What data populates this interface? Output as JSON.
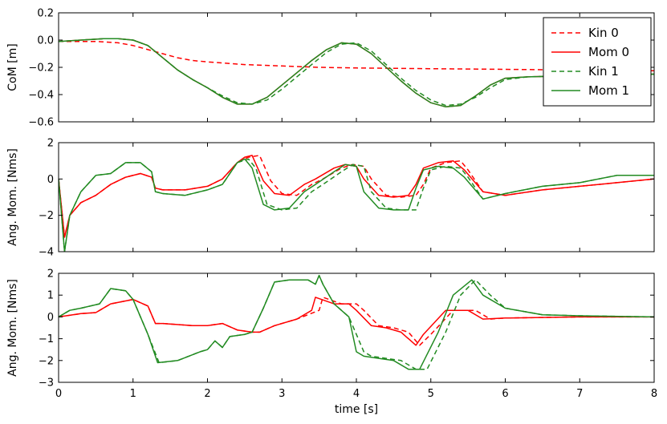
{
  "chart_data": [
    {
      "type": "line",
      "ylabel": "CoM [m]",
      "xlabel": "",
      "xlim": [
        0,
        8
      ],
      "ylim": [
        -0.6,
        0.2
      ],
      "yticks": [
        "−0.6",
        "−0.4",
        "−0.2",
        "0.0",
        "0.2"
      ],
      "ytick_values": [
        -0.6,
        -0.4,
        -0.2,
        0.0,
        0.2
      ],
      "legend": {
        "placement": "top-right"
      },
      "series": [
        {
          "name": "Kin 0",
          "color": "#ff0000",
          "style": "dashed",
          "x": [
            0,
            0.5,
            0.8,
            1.0,
            1.2,
            1.4,
            1.6,
            1.8,
            2.0,
            2.5,
            3.0,
            3.5,
            4.0,
            5.0,
            6.0,
            7.0,
            8.0
          ],
          "y": [
            -0.01,
            -0.01,
            -0.02,
            -0.04,
            -0.07,
            -0.1,
            -0.13,
            -0.15,
            -0.16,
            -0.18,
            -0.19,
            -0.2,
            -0.205,
            -0.21,
            -0.215,
            -0.22,
            -0.225
          ]
        },
        {
          "name": "Mom 0",
          "color": "#ff0000",
          "style": "solid",
          "x": [
            0,
            0.3,
            0.6,
            0.8,
            1.0,
            1.2,
            1.4,
            1.6,
            1.8,
            2.0,
            2.2,
            2.4,
            2.6,
            2.8,
            3.0,
            3.2,
            3.4,
            3.6,
            3.8,
            4.0,
            4.2,
            4.4,
            4.6,
            4.8,
            5.0,
            5.2,
            5.4,
            5.6,
            5.8,
            6.0,
            6.3,
            7.0,
            7.5,
            8.0
          ],
          "y": [
            -0.01,
            0.0,
            0.01,
            0.01,
            0.0,
            -0.04,
            -0.13,
            -0.22,
            -0.29,
            -0.35,
            -0.42,
            -0.47,
            -0.47,
            -0.42,
            -0.33,
            -0.24,
            -0.15,
            -0.07,
            -0.02,
            -0.03,
            -0.1,
            -0.2,
            -0.3,
            -0.39,
            -0.46,
            -0.49,
            -0.48,
            -0.41,
            -0.33,
            -0.28,
            -0.27,
            -0.26,
            -0.26,
            -0.25
          ]
        },
        {
          "name": "Kin 1",
          "color": "#228b22",
          "style": "dashed",
          "x": [
            0,
            0.3,
            0.6,
            0.8,
            1.0,
            1.2,
            1.4,
            1.6,
            1.8,
            2.0,
            2.2,
            2.4,
            2.6,
            2.8,
            3.0,
            3.2,
            3.4,
            3.6,
            3.8,
            4.0,
            4.2,
            4.4,
            4.6,
            4.8,
            5.0,
            5.2,
            5.4,
            5.6,
            5.8,
            6.0,
            6.3,
            7.0,
            7.5,
            8.0
          ],
          "y": [
            -0.01,
            0.0,
            0.01,
            0.01,
            0.0,
            -0.04,
            -0.13,
            -0.22,
            -0.29,
            -0.35,
            -0.41,
            -0.46,
            -0.47,
            -0.44,
            -0.36,
            -0.27,
            -0.18,
            -0.09,
            -0.03,
            -0.02,
            -0.08,
            -0.18,
            -0.28,
            -0.37,
            -0.44,
            -0.48,
            -0.47,
            -0.42,
            -0.35,
            -0.29,
            -0.27,
            -0.26,
            -0.26,
            -0.25
          ]
        },
        {
          "name": "Mom 1",
          "color": "#228b22",
          "style": "solid",
          "x": [
            0,
            0.3,
            0.6,
            0.8,
            1.0,
            1.2,
            1.4,
            1.6,
            1.8,
            2.0,
            2.2,
            2.4,
            2.6,
            2.8,
            3.0,
            3.2,
            3.4,
            3.6,
            3.8,
            4.0,
            4.2,
            4.4,
            4.6,
            4.8,
            5.0,
            5.2,
            5.4,
            5.6,
            5.8,
            6.0,
            6.3,
            7.0,
            7.5,
            8.0
          ],
          "y": [
            -0.01,
            0.0,
            0.01,
            0.01,
            0.0,
            -0.04,
            -0.13,
            -0.22,
            -0.29,
            -0.35,
            -0.42,
            -0.47,
            -0.47,
            -0.42,
            -0.33,
            -0.24,
            -0.15,
            -0.07,
            -0.02,
            -0.03,
            -0.1,
            -0.2,
            -0.3,
            -0.39,
            -0.46,
            -0.49,
            -0.48,
            -0.41,
            -0.33,
            -0.28,
            -0.27,
            -0.26,
            -0.26,
            -0.25
          ]
        }
      ]
    },
    {
      "type": "line",
      "ylabel": "Ang. Mom. [Nms]",
      "xlabel": "",
      "xlim": [
        0,
        8
      ],
      "ylim": [
        -4,
        2
      ],
      "yticks": [
        "−4",
        "−2",
        "0",
        "2"
      ],
      "ytick_values": [
        -4,
        -2,
        0,
        2
      ],
      "series": [
        {
          "name": "Kin 0",
          "color": "#ff0000",
          "style": "dashed",
          "x": [
            0,
            0.08,
            0.15,
            0.3,
            0.5,
            0.7,
            0.9,
            1.1,
            1.25,
            1.3,
            1.4,
            1.7,
            2.0,
            2.2,
            2.4,
            2.55,
            2.7,
            2.85,
            3.0,
            3.2,
            3.4,
            3.55,
            3.8,
            3.95,
            4.1,
            4.2,
            4.4,
            4.6,
            4.8,
            4.9,
            5.0,
            5.2,
            5.4,
            5.5,
            5.7,
            6.0,
            6.5,
            7.0,
            7.5,
            8.0
          ],
          "y": [
            0,
            -3.2,
            -2.0,
            -1.3,
            -0.9,
            -0.3,
            0.1,
            0.3,
            0.1,
            -0.5,
            -0.6,
            -0.6,
            -0.4,
            0.0,
            0.9,
            1.2,
            1.3,
            -0.1,
            -0.8,
            -0.9,
            -0.3,
            0.0,
            0.6,
            0.8,
            0.7,
            0.0,
            -0.9,
            -1.0,
            -0.9,
            -0.3,
            0.6,
            0.9,
            1.0,
            0.5,
            -0.7,
            -0.9,
            -0.6,
            -0.4,
            -0.2,
            0.0
          ]
        },
        {
          "name": "Mom 0",
          "color": "#ff0000",
          "style": "solid",
          "x": [
            0,
            0.08,
            0.15,
            0.3,
            0.5,
            0.7,
            0.9,
            1.1,
            1.25,
            1.3,
            1.4,
            1.7,
            2.0,
            2.2,
            2.4,
            2.5,
            2.6,
            2.75,
            2.9,
            3.1,
            3.3,
            3.45,
            3.7,
            3.85,
            4.0,
            4.1,
            4.3,
            4.5,
            4.7,
            4.8,
            4.9,
            5.1,
            5.3,
            5.45,
            5.7,
            6.0,
            6.5,
            7.0,
            7.5,
            8.0
          ],
          "y": [
            0,
            -3.2,
            -2.0,
            -1.3,
            -0.9,
            -0.3,
            0.1,
            0.3,
            0.1,
            -0.5,
            -0.6,
            -0.6,
            -0.4,
            0.0,
            0.9,
            1.2,
            1.3,
            -0.1,
            -0.8,
            -0.9,
            -0.3,
            0.0,
            0.6,
            0.8,
            0.7,
            0.0,
            -0.9,
            -1.0,
            -0.9,
            -0.3,
            0.6,
            0.9,
            1.0,
            0.5,
            -0.7,
            -0.9,
            -0.6,
            -0.4,
            -0.2,
            0.0
          ]
        },
        {
          "name": "Kin 1",
          "color": "#228b22",
          "style": "dashed",
          "x": [
            0,
            0.08,
            0.15,
            0.3,
            0.5,
            0.7,
            0.9,
            1.1,
            1.25,
            1.3,
            1.4,
            1.7,
            2.0,
            2.2,
            2.4,
            2.55,
            2.65,
            2.8,
            3.0,
            3.2,
            3.4,
            3.55,
            3.8,
            3.95,
            4.1,
            4.2,
            4.4,
            4.6,
            4.8,
            4.9,
            5.0,
            5.2,
            5.4,
            5.5,
            5.7,
            6.0,
            6.5,
            7.0,
            7.5,
            8.0
          ],
          "y": [
            0,
            -4.0,
            -2.0,
            -0.7,
            0.2,
            0.3,
            0.9,
            0.9,
            0.4,
            -0.7,
            -0.8,
            -0.9,
            -0.6,
            -0.3,
            0.9,
            1.1,
            0.6,
            -1.4,
            -1.7,
            -1.6,
            -0.7,
            -0.3,
            0.4,
            0.8,
            0.7,
            -0.7,
            -1.6,
            -1.7,
            -1.7,
            -0.5,
            0.5,
            0.7,
            0.6,
            0.1,
            -1.1,
            -0.8,
            -0.4,
            -0.2,
            0.2,
            0.2
          ]
        },
        {
          "name": "Mom 1",
          "color": "#228b22",
          "style": "solid",
          "x": [
            0,
            0.08,
            0.15,
            0.3,
            0.5,
            0.7,
            0.9,
            1.1,
            1.25,
            1.3,
            1.4,
            1.7,
            2.0,
            2.2,
            2.4,
            2.5,
            2.6,
            2.75,
            2.9,
            3.1,
            3.3,
            3.45,
            3.7,
            3.85,
            4.0,
            4.1,
            4.3,
            4.5,
            4.7,
            4.8,
            4.9,
            5.1,
            5.3,
            5.45,
            5.7,
            6.0,
            6.5,
            7.0,
            7.5,
            8.0
          ],
          "y": [
            0,
            -4.0,
            -2.0,
            -0.7,
            0.2,
            0.3,
            0.9,
            0.9,
            0.4,
            -0.7,
            -0.8,
            -0.9,
            -0.6,
            -0.3,
            0.9,
            1.1,
            0.6,
            -1.4,
            -1.7,
            -1.6,
            -0.7,
            -0.3,
            0.4,
            0.8,
            0.7,
            -0.7,
            -1.6,
            -1.7,
            -1.7,
            -0.5,
            0.5,
            0.7,
            0.6,
            0.1,
            -1.1,
            -0.8,
            -0.4,
            -0.2,
            0.2,
            0.2
          ]
        }
      ]
    },
    {
      "type": "line",
      "ylabel": "Ang. Mom. [Nms]",
      "xlabel": "time [s]",
      "xlim": [
        0,
        8
      ],
      "ylim": [
        -3,
        2
      ],
      "yticks": [
        "−3",
        "−2",
        "−1",
        "0",
        "1",
        "2"
      ],
      "ytick_values": [
        -3,
        -2,
        -1,
        0,
        1,
        2
      ],
      "xticks": [
        "0",
        "1",
        "2",
        "3",
        "4",
        "5",
        "6",
        "7",
        "8"
      ],
      "xtick_values": [
        0,
        1,
        2,
        3,
        4,
        5,
        6,
        7,
        8
      ],
      "series": [
        {
          "name": "Kin 0",
          "color": "#ff0000",
          "style": "dashed",
          "x": [
            0,
            0.3,
            0.5,
            0.7,
            1.0,
            1.2,
            1.3,
            1.4,
            1.8,
            2.0,
            2.2,
            2.4,
            2.6,
            2.7,
            2.9,
            3.2,
            3.5,
            3.55,
            3.8,
            4.0,
            4.1,
            4.3,
            4.5,
            4.7,
            4.85,
            5.0,
            5.3,
            5.5,
            5.6,
            5.8,
            6.0,
            7.0,
            8.0
          ],
          "y": [
            0,
            0.15,
            0.2,
            0.6,
            0.8,
            0.5,
            -0.3,
            -0.3,
            -0.4,
            -0.4,
            -0.3,
            -0.6,
            -0.7,
            -0.7,
            -0.4,
            -0.1,
            0.3,
            0.9,
            0.6,
            0.6,
            0.3,
            -0.4,
            -0.5,
            -0.7,
            -1.3,
            -0.8,
            0.3,
            0.3,
            0.3,
            -0.1,
            -0.05,
            0.0,
            0.0
          ]
        },
        {
          "name": "Mom 0",
          "color": "#ff0000",
          "style": "solid",
          "x": [
            0,
            0.3,
            0.5,
            0.7,
            1.0,
            1.2,
            1.3,
            1.4,
            1.8,
            2.0,
            2.2,
            2.4,
            2.6,
            2.7,
            2.9,
            3.2,
            3.4,
            3.45,
            3.7,
            3.9,
            4.0,
            4.2,
            4.4,
            4.6,
            4.8,
            4.9,
            5.2,
            5.4,
            5.5,
            5.7,
            6.0,
            7.0,
            8.0
          ],
          "y": [
            0,
            0.15,
            0.2,
            0.6,
            0.8,
            0.5,
            -0.3,
            -0.3,
            -0.4,
            -0.4,
            -0.3,
            -0.6,
            -0.7,
            -0.7,
            -0.4,
            -0.1,
            0.3,
            0.9,
            0.6,
            0.6,
            0.3,
            -0.4,
            -0.5,
            -0.7,
            -1.3,
            -0.8,
            0.3,
            0.3,
            0.3,
            -0.1,
            -0.05,
            0.0,
            0.0
          ]
        },
        {
          "name": "Kin 1",
          "color": "#228b22",
          "style": "dashed",
          "x": [
            0,
            0.15,
            0.3,
            0.55,
            0.7,
            0.9,
            1.0,
            1.2,
            1.35,
            1.6,
            1.9,
            2.0,
            2.1,
            2.2,
            2.3,
            2.5,
            2.6,
            2.75,
            2.9,
            3.1,
            3.35,
            3.45,
            3.5,
            3.55,
            3.7,
            3.9,
            4.1,
            4.2,
            4.4,
            4.6,
            4.8,
            4.95,
            5.2,
            5.4,
            5.6,
            5.8,
            6.0,
            6.5,
            7.0,
            8.0
          ],
          "y": [
            0,
            0.3,
            0.4,
            0.6,
            1.3,
            1.2,
            0.8,
            -0.8,
            -2.1,
            -2.0,
            -1.6,
            -1.5,
            -1.1,
            -1.4,
            -0.9,
            -0.8,
            -0.7,
            0.4,
            1.6,
            1.7,
            1.7,
            1.5,
            1.9,
            1.5,
            0.6,
            0.0,
            -1.6,
            -1.8,
            -1.9,
            -2.0,
            -2.4,
            -2.4,
            -0.7,
            1.0,
            1.7,
            1.0,
            0.4,
            0.1,
            0.05,
            0.0
          ]
        },
        {
          "name": "Mom 1",
          "color": "#228b22",
          "style": "solid",
          "x": [
            0,
            0.15,
            0.3,
            0.55,
            0.7,
            0.9,
            1.0,
            1.2,
            1.33,
            1.6,
            1.9,
            2.0,
            2.1,
            2.2,
            2.3,
            2.5,
            2.6,
            2.75,
            2.9,
            3.1,
            3.35,
            3.45,
            3.5,
            3.55,
            3.7,
            3.9,
            4.0,
            4.1,
            4.3,
            4.5,
            4.7,
            4.85,
            5.1,
            5.3,
            5.55,
            5.7,
            6.0,
            6.5,
            7.0,
            8.0
          ],
          "y": [
            0,
            0.3,
            0.4,
            0.6,
            1.3,
            1.2,
            0.8,
            -0.8,
            -2.1,
            -2.0,
            -1.6,
            -1.5,
            -1.1,
            -1.4,
            -0.9,
            -0.8,
            -0.7,
            0.4,
            1.6,
            1.7,
            1.7,
            1.5,
            1.9,
            1.5,
            0.6,
            0.0,
            -1.6,
            -1.8,
            -1.9,
            -2.0,
            -2.4,
            -2.4,
            -0.7,
            1.0,
            1.7,
            1.0,
            0.4,
            0.1,
            0.05,
            0.0
          ]
        }
      ]
    }
  ]
}
